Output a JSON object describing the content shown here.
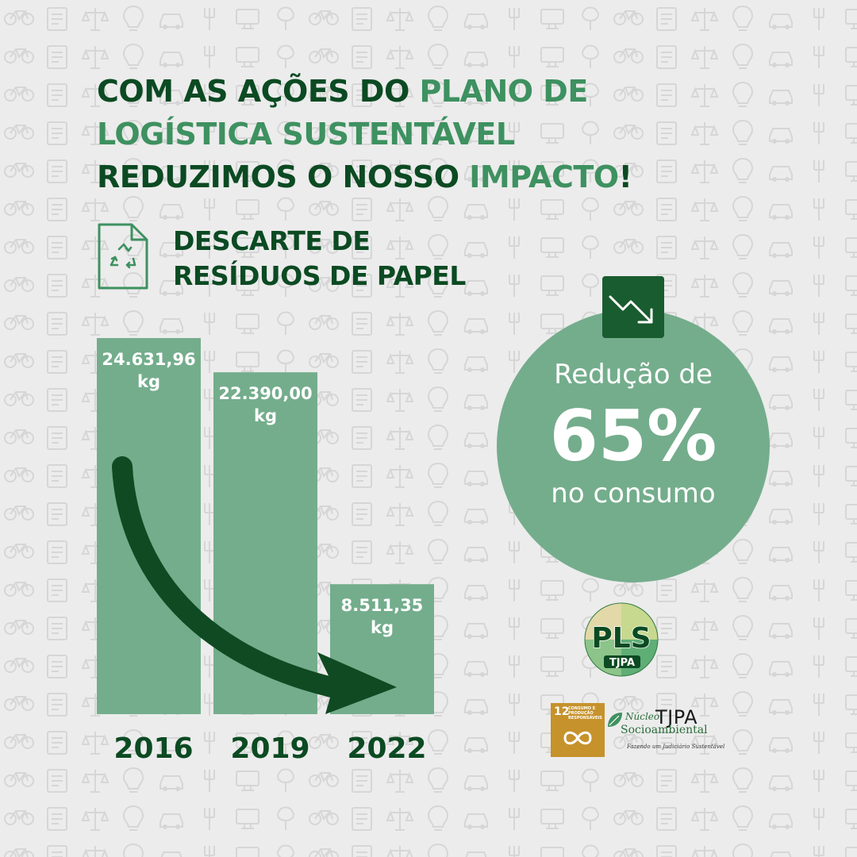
{
  "headline": {
    "line1_dark": "COM AS AÇÕES DO ",
    "line1_light": "PLANO DE",
    "line2_light": "LOGÍSTICA SUSTENTÁVEL",
    "line3_dark": "REDUZIMOS O NOSSO ",
    "line3_light": "IMPACTO",
    "line3_end": "!"
  },
  "section": {
    "title_line1": "DESCARTE DE",
    "title_line2": "RESÍDUOS DE PAPEL",
    "icon": "recycle-document-icon"
  },
  "chart_data": {
    "type": "bar",
    "categories": [
      "2016",
      "2019",
      "2022"
    ],
    "values": [
      24631.96,
      22390.0,
      8511.35
    ],
    "value_labels": [
      "24.631,96",
      "22.390,00",
      "8.511,35"
    ],
    "unit": "kg",
    "title": "DESCARTE DE RESÍDUOS DE PAPEL",
    "xlabel": "",
    "ylabel": "",
    "ylim": [
      0,
      24631.96
    ],
    "grid": false,
    "legend": "none",
    "trend_arrow": "downward",
    "bar_color": "#74ad8c",
    "arrow_color": "#0f4a22"
  },
  "reduction": {
    "line1": "Redução de",
    "value": "65%",
    "line3": "no consumo",
    "icon": "trend-down-icon"
  },
  "logos": {
    "pls_text": "PLS",
    "pls_sub": "TJPA",
    "sdg_number": "12",
    "sdg_label": "CONSUMO E PRODUÇÃO RESPONSÁVEIS",
    "nucleo_line1": "Núcleo",
    "nucleo_org": "TJPA",
    "nucleo_line2": "Socioambiental",
    "nucleo_tagline": "Fazendo um Judiciário Sustentável"
  },
  "colors": {
    "background": "#ececec",
    "dark_green": "#0b4a22",
    "light_green": "#3e9160",
    "bar_green": "#74ad8c",
    "badge_green": "#195c2f"
  }
}
